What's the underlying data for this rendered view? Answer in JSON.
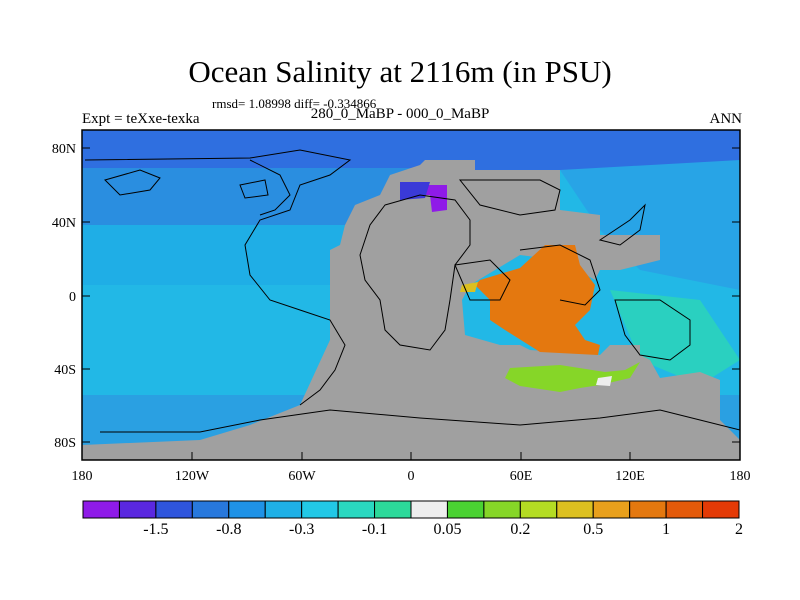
{
  "title": "Ocean Salinity at 2116m (in PSU)",
  "stats": "rmsd= 1.08998 diff= -0.334866",
  "experiment": "Expt = teXxe-texka",
  "period": "280_0_MaBP - 000_0_MaBP",
  "season": "ANN",
  "y_axis_labels": [
    "80N",
    "40N",
    "0",
    "40S",
    "80S"
  ],
  "x_axis_labels": [
    "180",
    "120W",
    "60W",
    "0",
    "60E",
    "120E",
    "180"
  ],
  "colorbar": {
    "colors": [
      "#8f1be8",
      "#5a28e0",
      "#2f55dc",
      "#2878dc",
      "#1f92e6",
      "#1fb0e6",
      "#22c8e6",
      "#2ad8c0",
      "#2cd99a",
      "#eeeeee",
      "#4ad232",
      "#86d628",
      "#b4dc23",
      "#dcc020",
      "#e8a01c",
      "#e4780f",
      "#e45a0a",
      "#e43a06"
    ],
    "labels": [
      "-1.5",
      "-0.8",
      "-0.3",
      "-0.1",
      "0.05",
      "0.2",
      "0.5",
      "1",
      "2"
    ]
  },
  "colors": {
    "land": "#a0a0a0",
    "ocean_base": "#1fb0e6",
    "arctic": "#2f6fe0"
  }
}
